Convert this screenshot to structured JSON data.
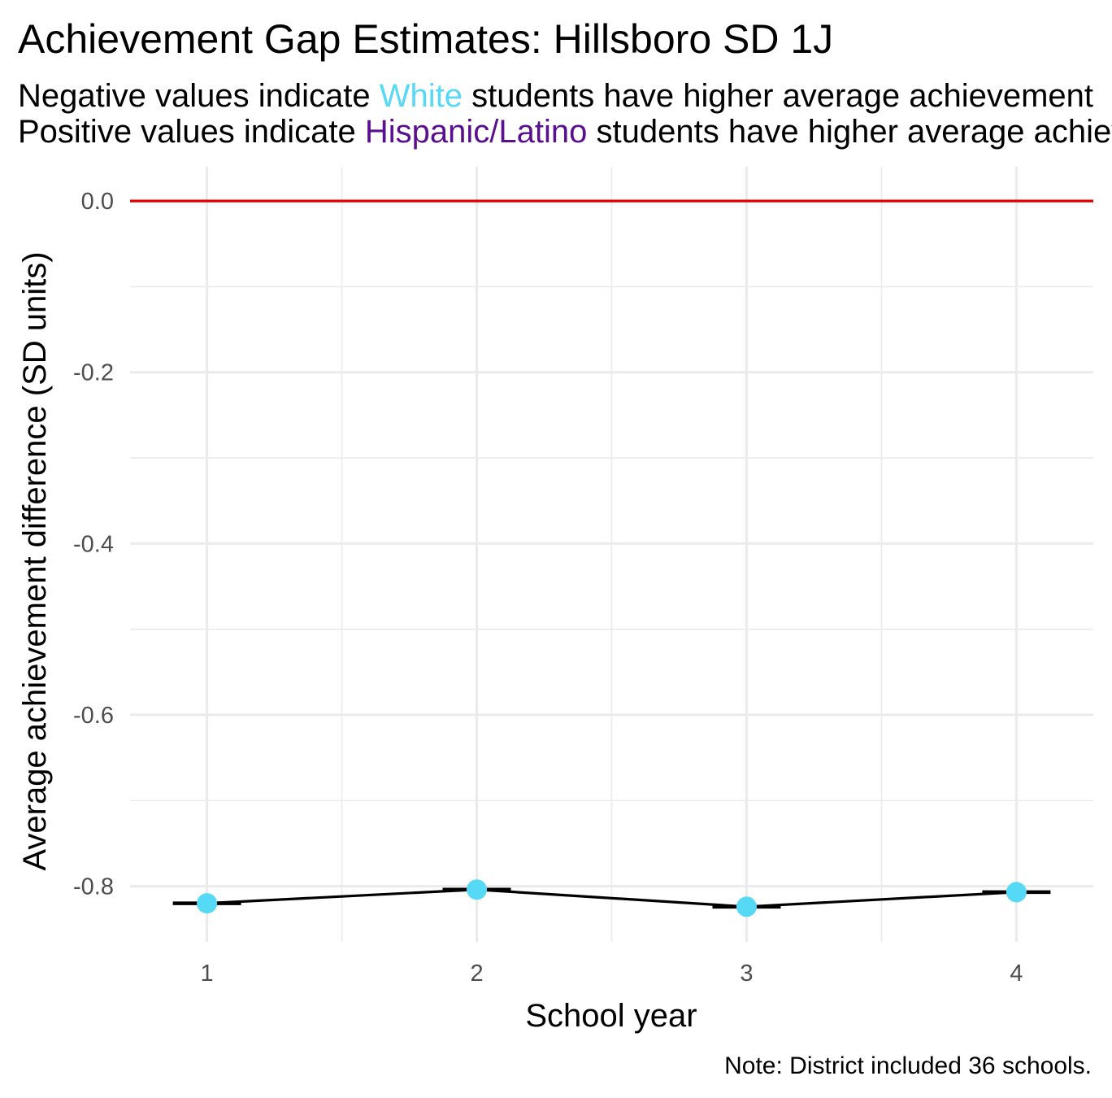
{
  "chart_data": {
    "type": "line",
    "title": "Achievement Gap Estimates: Hillsboro SD 1J",
    "subtitle": {
      "line1": {
        "prefix": "Negative values indicate ",
        "highlight": "White",
        "suffix": " students have higher average achievement"
      },
      "line2": {
        "prefix": "Positive values indicate ",
        "highlight": "Hispanic/Latino",
        "suffix": " students have higher average achievement"
      }
    },
    "xlabel": "School year",
    "ylabel": "Average achievement difference (SD units)",
    "caption": "Note: District included 36 schools.",
    "x": [
      1,
      2,
      3,
      4
    ],
    "series": [
      {
        "values": [
          -0.82,
          -0.804,
          -0.824,
          -0.807
        ]
      }
    ],
    "x_ticks": [
      "1",
      "2",
      "3",
      "4"
    ],
    "y_ticks": [
      "0.0",
      "-0.2",
      "-0.4",
      "-0.6",
      "-0.8"
    ],
    "xlim": [
      0.715,
      4.285
    ],
    "ylim": [
      -0.865,
      0.04
    ],
    "reference_line": 0,
    "grid": true,
    "colors": {
      "point": "#56D9F5",
      "line": "#000000",
      "reference_line": "#e00000",
      "white_highlight": "#56D9F5",
      "hispanic_highlight": "#5A0F91",
      "grid": "#ebebeb"
    }
  }
}
